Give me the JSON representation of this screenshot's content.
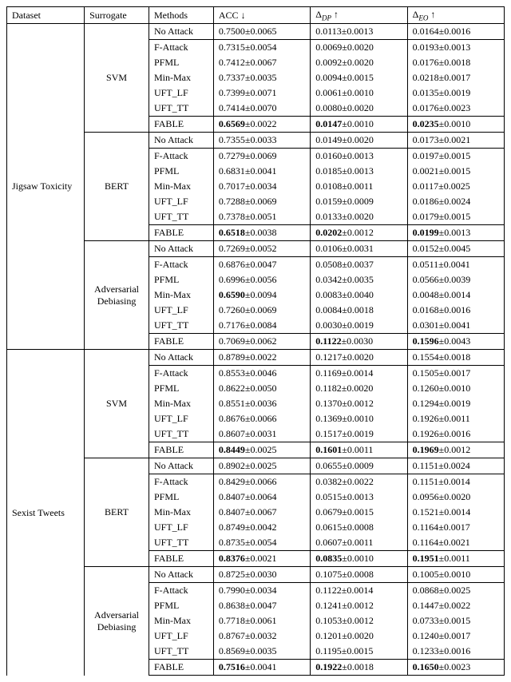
{
  "columns": {
    "dataset": "Dataset",
    "surrogate": "Surrogate",
    "methods": "Methods",
    "acc_html": "ACC &darr;",
    "dp_html": "&Delta;<sub><i>DP</i></sub> &uarr;",
    "eo_html": "&Delta;<sub><i>EO</i></sub> &uarr;"
  },
  "datasets": [
    {
      "name": "Jigsaw Toxicity",
      "surrogates": [
        {
          "name": "SVM",
          "blocks": [
            {
              "rows": [
                {
                  "m": "No Attack",
                  "acc": "0.7500±0.0065",
                  "dp": "0.0113±0.0013",
                  "eo": "0.0164±0.0016"
                }
              ]
            },
            {
              "rows": [
                {
                  "m": "F-Attack",
                  "acc": "0.7315±0.0054",
                  "dp": "0.0069±0.0020",
                  "eo": "0.0193±0.0013"
                },
                {
                  "m": "PFML",
                  "acc": "0.7412±0.0067",
                  "dp": "0.0092±0.0020",
                  "eo": "0.0176±0.0018"
                },
                {
                  "m": "Min-Max",
                  "acc": "0.7337±0.0035",
                  "dp": "0.0094±0.0015",
                  "eo": "0.0218±0.0017"
                },
                {
                  "m": "UFT_LF",
                  "acc": "0.7399±0.0071",
                  "dp": "0.0061±0.0010",
                  "eo": "0.0135±0.0019"
                },
                {
                  "m": "UFT_TT",
                  "acc": "0.7414±0.0070",
                  "dp": "0.0080±0.0020",
                  "eo": "0.0176±0.0023"
                }
              ]
            },
            {
              "rows": [
                {
                  "m": "FABLE",
                  "acc": "0.6569",
                  "acc_err": "±0.0022",
                  "dp": "0.0147",
                  "dp_err": "±0.0010",
                  "eo": "0.0235",
                  "eo_err": "±0.0010",
                  "bold": true
                }
              ]
            }
          ]
        },
        {
          "name": "BERT",
          "blocks": [
            {
              "rows": [
                {
                  "m": "No Attack",
                  "acc": "0.7355±0.0033",
                  "dp": "0.0149±0.0020",
                  "eo": "0.0173±0.0021"
                }
              ]
            },
            {
              "rows": [
                {
                  "m": "F-Attack",
                  "acc": "0.7279±0.0069",
                  "dp": "0.0160±0.0013",
                  "eo": "0.0197±0.0015"
                },
                {
                  "m": "PFML",
                  "acc": "0.6831±0.0041",
                  "dp": "0.0185±0.0013",
                  "eo": "0.0021±0.0015"
                },
                {
                  "m": "Min-Max",
                  "acc": "0.7017±0.0034",
                  "dp": "0.0108±0.0011",
                  "eo": "0.0117±0.0025"
                },
                {
                  "m": "UFT_LF",
                  "acc": "0.7288±0.0069",
                  "dp": "0.0159±0.0009",
                  "eo": "0.0186±0.0024"
                },
                {
                  "m": "UFT_TT",
                  "acc": "0.7378±0.0051",
                  "dp": "0.0133±0.0020",
                  "eo": "0.0179±0.0015"
                }
              ]
            },
            {
              "rows": [
                {
                  "m": "FABLE",
                  "acc": "0.6518",
                  "acc_err": "±0.0038",
                  "dp": "0.0202",
                  "dp_err": "±0.0012",
                  "eo": "0.0199",
                  "eo_err": "±0.0013",
                  "bold": true
                }
              ]
            }
          ]
        },
        {
          "name_html": "Adversarial<br>Debiasing",
          "blocks": [
            {
              "rows": [
                {
                  "m": "No Attack",
                  "acc": "0.7269±0.0052",
                  "dp": "0.0106±0.0031",
                  "eo": "0.0152±0.0045"
                }
              ]
            },
            {
              "rows": [
                {
                  "m": "F-Attack",
                  "acc": "0.6876±0.0047",
                  "dp": "0.0508±0.0037",
                  "eo": "0.0511±0.0041"
                },
                {
                  "m": "PFML",
                  "acc": "0.6996±0.0056",
                  "dp": "0.0342±0.0035",
                  "eo": "0.0566±0.0039"
                },
                {
                  "m": "Min-Max",
                  "acc": "0.6590",
                  "acc_err": "±0.0094",
                  "acc_bold": true,
                  "dp": "0.0083±0.0040",
                  "eo": "0.0048±0.0014"
                },
                {
                  "m": "UFT_LF",
                  "acc": "0.7260±0.0069",
                  "dp": "0.0084±0.0018",
                  "eo": "0.0168±0.0016"
                },
                {
                  "m": "UFT_TT",
                  "acc": "0.7176±0.0084",
                  "dp": "0.0030±0.0019",
                  "eo": "0.0301±0.0041"
                }
              ]
            },
            {
              "rows": [
                {
                  "m": "FABLE",
                  "acc": "0.7069±0.0062",
                  "dp": "0.1122",
                  "dp_err": "±0.0030",
                  "dp_bold": true,
                  "eo": "0.1596",
                  "eo_err": "±0.0043",
                  "eo_bold": true
                }
              ]
            }
          ]
        }
      ]
    },
    {
      "name": "Sexist Tweets",
      "surrogates": [
        {
          "name": "SVM",
          "blocks": [
            {
              "rows": [
                {
                  "m": "No Attack",
                  "acc": "0.8789±0.0022",
                  "dp": "0.1217±0.0020",
                  "eo": "0.1554±0.0018"
                }
              ]
            },
            {
              "rows": [
                {
                  "m": "F-Attack",
                  "acc": "0.8553±0.0046",
                  "dp": "0.1169±0.0014",
                  "eo": "0.1505±0.0017"
                },
                {
                  "m": "PFML",
                  "acc": "0.8622±0.0050",
                  "dp": "0.1182±0.0020",
                  "eo": "0.1260±0.0010"
                },
                {
                  "m": "Min-Max",
                  "acc": "0.8551±0.0036",
                  "dp": "0.1370±0.0012",
                  "eo": "0.1294±0.0019"
                },
                {
                  "m": "UFT_LF",
                  "acc": "0.8676±0.0066",
                  "dp": "0.1369±0.0010",
                  "eo": "0.1926±0.0011"
                },
                {
                  "m": "UFT_TT",
                  "acc": "0.8607±0.0031",
                  "dp": "0.1517±0.0019",
                  "eo": "0.1926±0.0016"
                }
              ]
            },
            {
              "rows": [
                {
                  "m": "FABLE",
                  "acc": "0.8449",
                  "acc_err": "±0.0025",
                  "dp": "0.1601",
                  "dp_err": "±0.0011",
                  "eo": "0.1969",
                  "eo_err": "±0.0012",
                  "bold": true
                }
              ]
            }
          ]
        },
        {
          "name": "BERT",
          "blocks": [
            {
              "rows": [
                {
                  "m": "No Attack",
                  "acc": "0.8902±0.0025",
                  "dp": "0.0655±0.0009",
                  "eo": "0.1151±0.0024"
                }
              ]
            },
            {
              "rows": [
                {
                  "m": "F-Attack",
                  "acc": "0.8429±0.0066",
                  "dp": "0.0382±0.0022",
                  "eo": "0.1151±0.0014"
                },
                {
                  "m": "PFML",
                  "acc": "0.8407±0.0064",
                  "dp": "0.0515±0.0013",
                  "eo": "0.0956±0.0020"
                },
                {
                  "m": "Min-Max",
                  "acc": "0.8407±0.0067",
                  "dp": "0.0679±0.0015",
                  "eo": "0.1521±0.0014"
                },
                {
                  "m": "UFT_LF",
                  "acc": "0.8749±0.0042",
                  "dp": "0.0615±0.0008",
                  "eo": "0.1164±0.0017"
                },
                {
                  "m": "UFT_TT",
                  "acc": "0.8735±0.0054",
                  "dp": "0.0607±0.0011",
                  "eo": "0.1164±0.0021"
                }
              ]
            },
            {
              "rows": [
                {
                  "m": "FABLE",
                  "acc": "0.8376",
                  "acc_err": "±0.0021",
                  "dp": "0.0835",
                  "dp_err": "±0.0010",
                  "eo": "0.1951",
                  "eo_err": "±0.0011",
                  "bold": true
                }
              ]
            }
          ]
        },
        {
          "name_html": "Adversarial<br>Debiasing",
          "blocks": [
            {
              "rows": [
                {
                  "m": "No Attack",
                  "acc": "0.8725±0.0030",
                  "dp": "0.1075±0.0008",
                  "eo": "0.1005±0.0010"
                }
              ]
            },
            {
              "rows": [
                {
                  "m": "F-Attack",
                  "acc": "0.7990±0.0034",
                  "dp": "0.1122±0.0014",
                  "eo": "0.0868±0.0025"
                },
                {
                  "m": "PFML",
                  "acc": "0.8638±0.0047",
                  "dp": "0.1241±0.0012",
                  "eo": "0.1447±0.0022"
                },
                {
                  "m": "Min-Max",
                  "acc": "0.7718±0.0061",
                  "dp": "0.1053±0.0012",
                  "eo": "0.0733±0.0015"
                },
                {
                  "m": "UFT_LF",
                  "acc": "0.8767±0.0032",
                  "dp": "0.1201±0.0020",
                  "eo": "0.1240±0.0017"
                },
                {
                  "m": "UFT_TT",
                  "acc": "0.8569±0.0035",
                  "dp": "0.1195±0.0015",
                  "eo": "0.1233±0.0016"
                }
              ]
            },
            {
              "rows": [
                {
                  "m": "FABLE",
                  "acc": "0.7516",
                  "acc_err": "±0.0041",
                  "dp": "0.1922",
                  "dp_err": "±0.0018",
                  "eo": "0.1650",
                  "eo_err": "±0.0023",
                  "bold": true
                }
              ]
            }
          ]
        }
      ]
    }
  ]
}
